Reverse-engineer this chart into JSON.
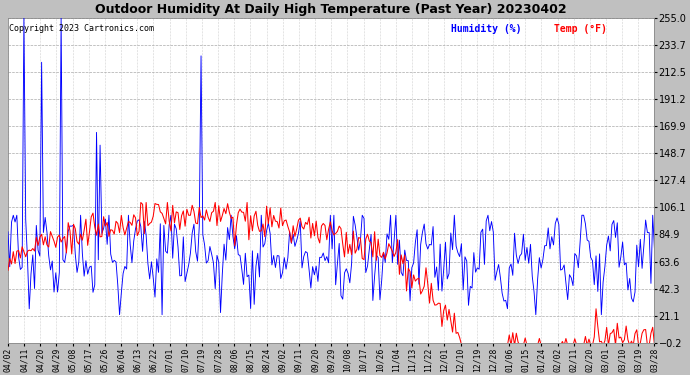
{
  "title": "Outdoor Humidity At Daily High Temperature (Past Year) 20230402",
  "copyright": "Copyright 2023 Cartronics.com",
  "legend_humidity": "Humidity (%)",
  "legend_temp": "Temp (°F)",
  "ylim": [
    -0.2,
    255.0
  ],
  "yticks": [
    255.0,
    233.7,
    212.5,
    191.2,
    169.9,
    148.7,
    127.4,
    106.1,
    84.9,
    63.6,
    42.3,
    21.1,
    -0.2
  ],
  "humidity_color": "#0000ff",
  "temp_color": "#ff0000",
  "bg_color": "#ffffff",
  "fig_bg": "#c0c0c0",
  "title_fontsize": 9.5,
  "x_labels": [
    "04/02",
    "04/11",
    "04/20",
    "04/29",
    "05/08",
    "05/17",
    "05/26",
    "06/04",
    "06/13",
    "06/22",
    "07/01",
    "07/10",
    "07/19",
    "07/28",
    "08/06",
    "08/15",
    "08/24",
    "09/02",
    "09/11",
    "09/20",
    "09/29",
    "10/08",
    "10/17",
    "10/26",
    "11/04",
    "11/13",
    "11/22",
    "12/01",
    "12/10",
    "12/19",
    "12/28",
    "01/06",
    "01/15",
    "01/24",
    "02/02",
    "02/11",
    "02/20",
    "03/01",
    "03/10",
    "03/19",
    "03/28"
  ],
  "n_points": 366
}
